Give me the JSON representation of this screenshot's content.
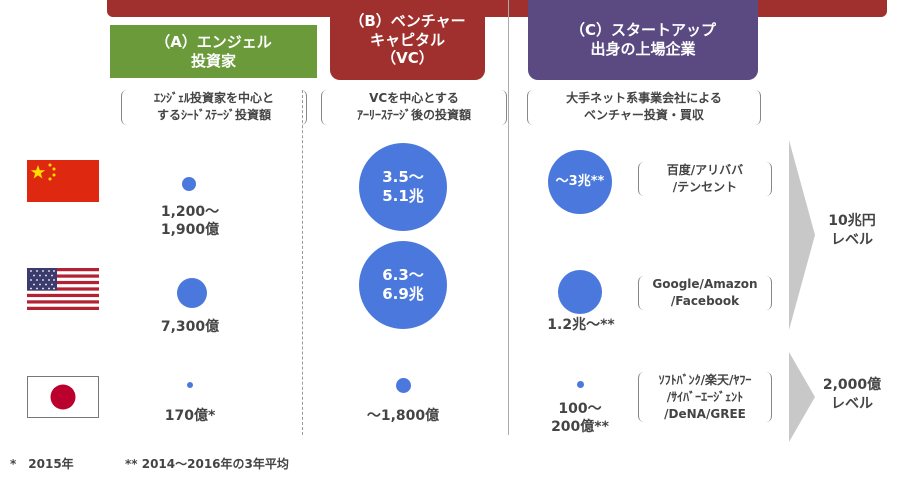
{
  "headers": {
    "a": "（A）エンジェル\n投資家",
    "b": "（B）ベンチャー\nキャピタル\n（VC）",
    "c": "（C）スタートアップ\n出身の上場企業"
  },
  "descriptions": {
    "a": "ｴﾝｼﾞｪﾙ投資家を中心と\nするｼｰﾄﾞｽﾃｰｼﾞ投資額",
    "b": "VCを中心とする\nｱｰﾘｰｽﾃｰｼﾞ後の投資額",
    "c": "大手ネット系事業会社による\nベンチャー投資・買収"
  },
  "rows": {
    "china": {
      "flag": "china-flag",
      "a": "1,200～\n1,900億",
      "b": "3.5～\n5.1兆",
      "c": "～3兆**",
      "companies": "百度/アリババ\n/テンセント"
    },
    "usa": {
      "flag": "usa-flag",
      "a": "7,300億",
      "b": "6.3～\n6.9兆",
      "c": "1.2兆～**",
      "companies": "Google/Amazon\n/Facebook"
    },
    "japan": {
      "flag": "japan-flag",
      "a": "170億*",
      "b": "～1,800億",
      "c": "100～\n200億**",
      "companies": "ｿﾌﾄﾊﾞﾝｸ/楽天/ﾔﾌｰ\n/ｻｲﾊﾞｰｴｰｼﾞｪﾝﾄ\n/DeNA/GREE"
    }
  },
  "levels": {
    "top": "10兆円\nレベル",
    "bottom": "2,000億\nレベル"
  },
  "footnotes": {
    "single": "*　2015年",
    "double": "** 2014～2016年の3年平均"
  },
  "colors": {
    "angel": "#6a9a3a",
    "vc": "#a0302e",
    "startup": "#5b4a82",
    "bubble": "#4a78dc"
  }
}
